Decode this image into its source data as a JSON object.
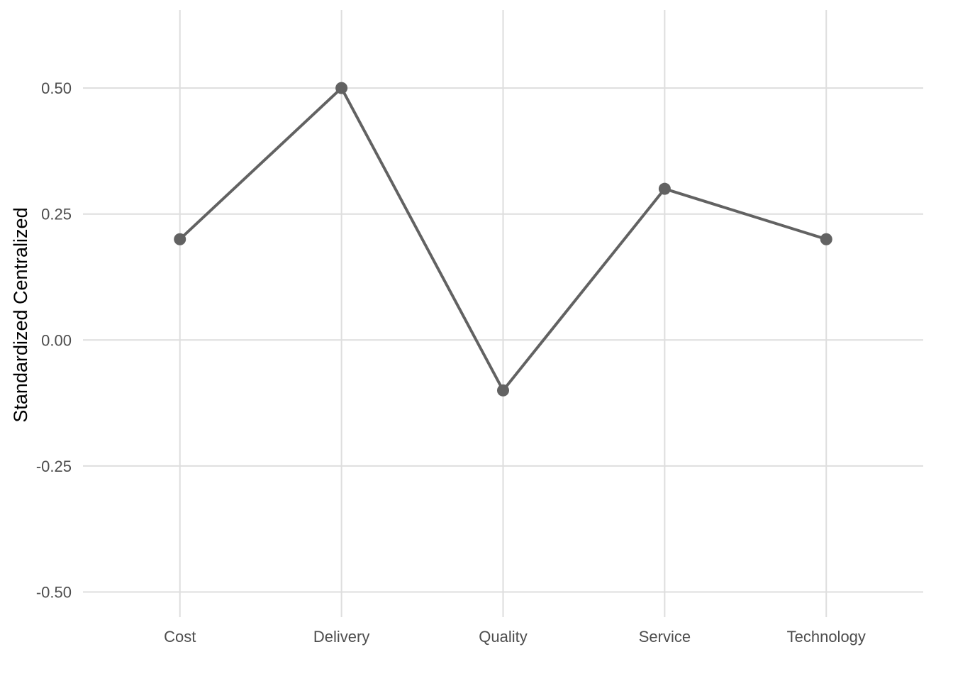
{
  "chart_data": {
    "type": "line",
    "title": "",
    "xlabel": "",
    "ylabel": "Standardized Centralized",
    "categories": [
      "Cost",
      "Delivery",
      "Quality",
      "Service",
      "Technology"
    ],
    "series": [
      {
        "values": [
          0.2,
          0.5,
          -0.1,
          0.3,
          0.2
        ]
      }
    ],
    "ylim": [
      -0.55,
      0.655
    ],
    "yticks": [
      -0.5,
      -0.25,
      0.0,
      0.25,
      0.5
    ],
    "ytick_labels": [
      "-0.50",
      "-0.25",
      "0.00",
      "0.25",
      "0.50"
    ],
    "grid": true,
    "legend": "none",
    "colors": {
      "series": "#626262",
      "grid": "#dedede",
      "tick_text": "#4d4d4d",
      "axis_title": "#000000",
      "background": "#ffffff"
    }
  }
}
